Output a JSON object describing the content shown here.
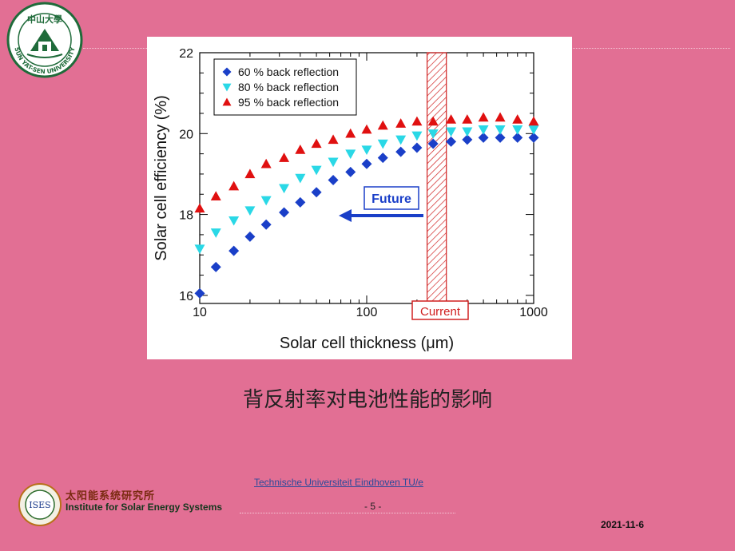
{
  "logo": {
    "name": "Sun Yat-Sen University",
    "chinese": "中山大學",
    "ring_text": "SUN YAT-SEN UNIVERSITY"
  },
  "caption": "背反射率对电池性能的影响",
  "chart_data": {
    "type": "scatter",
    "xlabel": "Solar cell thickness (μm)",
    "ylabel": "Solar cell efficiency (%)",
    "x_scale": "log",
    "xlim": [
      10,
      1000
    ],
    "ylim": [
      15.8,
      22
    ],
    "x_ticks": [
      "10",
      "100",
      "1000"
    ],
    "y_ticks": [
      "16",
      "18",
      "20",
      "22"
    ],
    "legend_position": "top-left",
    "series": [
      {
        "name": "60 % back reflection",
        "marker": "diamond",
        "color": "#1a3fc8",
        "x": [
          10,
          12.5,
          16,
          20,
          25,
          32,
          40,
          50,
          63,
          80,
          100,
          125,
          160,
          200,
          250,
          320,
          400,
          500,
          630,
          800,
          1000
        ],
        "y": [
          16.05,
          16.7,
          17.1,
          17.45,
          17.75,
          18.05,
          18.3,
          18.55,
          18.85,
          19.05,
          19.25,
          19.4,
          19.55,
          19.65,
          19.75,
          19.8,
          19.85,
          19.9,
          19.9,
          19.9,
          19.9
        ]
      },
      {
        "name": "80 % back reflection",
        "marker": "triangle-down",
        "color": "#2ad8e6",
        "x": [
          10,
          12.5,
          16,
          20,
          25,
          32,
          40,
          50,
          63,
          80,
          100,
          125,
          160,
          200,
          250,
          320,
          400,
          500,
          630,
          800,
          1000
        ],
        "y": [
          17.15,
          17.55,
          17.85,
          18.1,
          18.35,
          18.65,
          18.9,
          19.1,
          19.3,
          19.5,
          19.6,
          19.75,
          19.85,
          19.95,
          20.0,
          20.05,
          20.05,
          20.1,
          20.1,
          20.1,
          20.1
        ]
      },
      {
        "name": "95 % back reflection",
        "marker": "triangle-up",
        "color": "#e01010",
        "x": [
          10,
          12.5,
          16,
          20,
          25,
          32,
          40,
          50,
          63,
          80,
          100,
          125,
          160,
          200,
          250,
          320,
          400,
          500,
          630,
          800,
          1000
        ],
        "y": [
          18.15,
          18.45,
          18.7,
          19.0,
          19.25,
          19.4,
          19.6,
          19.75,
          19.85,
          20.0,
          20.1,
          20.2,
          20.25,
          20.3,
          20.3,
          20.35,
          20.35,
          20.4,
          20.4,
          20.35,
          20.3
        ]
      }
    ],
    "annotations": {
      "current_label": "Current",
      "current_range_um": [
        230,
        300
      ],
      "future_label": "Future"
    }
  },
  "footer": {
    "logo_text": "ISES",
    "org_cn": "太阳能系统研究所",
    "org_en": "Institute for Solar Energy Systems",
    "link": "Technische Universiteit Eindhoven   TU/e",
    "page": "- 5 -",
    "date": "2021-11-6"
  }
}
